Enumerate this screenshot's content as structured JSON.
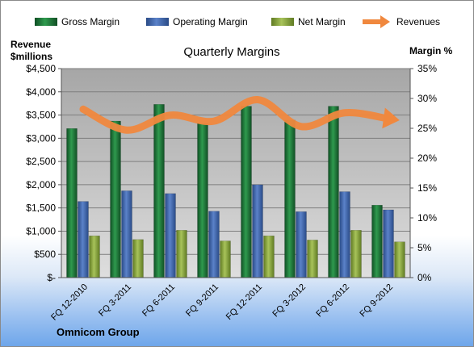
{
  "chart_data": {
    "type": "bar",
    "title": "Quarterly Margins",
    "categories": [
      "FQ 12-2010",
      "FQ 3-2011",
      "FQ 6-2011",
      "FQ 9-2011",
      "FQ 12-2011",
      "FQ 3-2012",
      "FQ 6-2012",
      "FQ 9-2012"
    ],
    "ylabel_left": "Revenue\n$millions",
    "ylabel_right": "Margin %",
    "ylim_left": [
      0,
      4500
    ],
    "ylim_right": [
      0,
      35
    ],
    "yticks_left": [
      "$-",
      "$500",
      "$1,000",
      "$1,500",
      "$2,000",
      "$2,500",
      "$3,000",
      "$3,500",
      "$4,000",
      "$4,500"
    ],
    "yticks_right": [
      "0%",
      "5%",
      "10%",
      "15%",
      "20%",
      "25%",
      "30%",
      "35%"
    ],
    "grid": true,
    "legend_position": "top",
    "series": [
      {
        "name": "Gross Margin",
        "axis": "left",
        "color": "#1e7a3c",
        "values": [
          3210,
          3370,
          3730,
          3320,
          3690,
          3390,
          3690,
          1560
        ]
      },
      {
        "name": "Operating Margin",
        "axis": "left",
        "color": "#3f66b0",
        "values": [
          1640,
          1870,
          1810,
          1430,
          2000,
          1420,
          1850,
          1460
        ]
      },
      {
        "name": "Net Margin",
        "axis": "left",
        "color": "#8fae3c",
        "values": [
          900,
          820,
          1020,
          790,
          900,
          810,
          1020,
          770
        ]
      },
      {
        "name": "Revenues",
        "axis": "right",
        "type": "line",
        "color": "#f0883e",
        "values": [
          28.2,
          24.7,
          27.2,
          26.2,
          29.8,
          25.3,
          27.6,
          26.6
        ]
      }
    ]
  },
  "footer": {
    "company": "Omnicom Group"
  }
}
